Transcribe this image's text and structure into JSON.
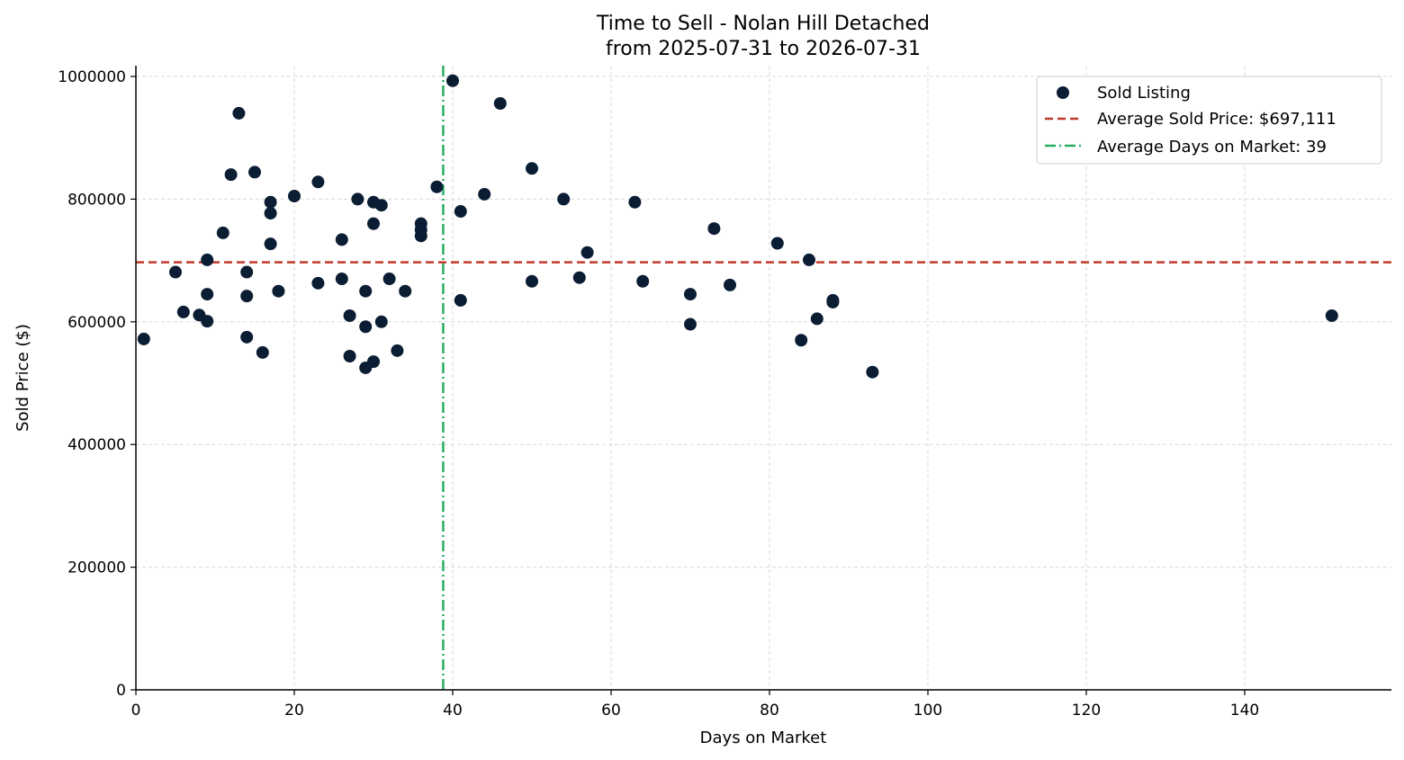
{
  "chart_data": {
    "type": "scatter",
    "title": "Time to Sell - Nolan Hill Detached",
    "subtitle": "from 2025-07-31 to 2026-07-31",
    "xlabel": "Days on Market",
    "ylabel": "Sold Price ($)",
    "xlim": [
      0,
      158
    ],
    "ylim": [
      0,
      1015000
    ],
    "x_ticks": [
      0,
      20,
      40,
      60,
      80,
      100,
      120,
      140
    ],
    "y_ticks": [
      0,
      200000,
      400000,
      600000,
      800000,
      1000000
    ],
    "grid": true,
    "legend_position": "top-right",
    "colors": {
      "points": "#0b1d33",
      "avg_price_line": "#c0392b",
      "avg_days_line": "#27ae60",
      "grid": "#d9d9d9"
    },
    "series": [
      {
        "name": "Sold Listing",
        "points": [
          [
            1,
            572000
          ],
          [
            5,
            681000
          ],
          [
            6,
            616000
          ],
          [
            8,
            611000
          ],
          [
            9,
            601000
          ],
          [
            9,
            645000
          ],
          [
            9,
            701000
          ],
          [
            11,
            745000
          ],
          [
            12,
            840000
          ],
          [
            13,
            940000
          ],
          [
            14,
            681000
          ],
          [
            14,
            642000
          ],
          [
            14,
            575000
          ],
          [
            15,
            844000
          ],
          [
            16,
            550000
          ],
          [
            17,
            795000
          ],
          [
            17,
            777000
          ],
          [
            17,
            727000
          ],
          [
            18,
            650000
          ],
          [
            20,
            805000
          ],
          [
            23,
            828000
          ],
          [
            23,
            663000
          ],
          [
            26,
            734000
          ],
          [
            26,
            670000
          ],
          [
            27,
            610000
          ],
          [
            27,
            544000
          ],
          [
            28,
            800000
          ],
          [
            29,
            650000
          ],
          [
            29,
            592000
          ],
          [
            29,
            525000
          ],
          [
            30,
            795000
          ],
          [
            30,
            760000
          ],
          [
            30,
            535000
          ],
          [
            31,
            790000
          ],
          [
            31,
            600000
          ],
          [
            32,
            670000
          ],
          [
            33,
            553000
          ],
          [
            34,
            650000
          ],
          [
            36,
            760000
          ],
          [
            36,
            750000
          ],
          [
            36,
            740000
          ],
          [
            38,
            820000
          ],
          [
            40,
            993000
          ],
          [
            41,
            780000
          ],
          [
            41,
            635000
          ],
          [
            44,
            808000
          ],
          [
            46,
            956000
          ],
          [
            50,
            850000
          ],
          [
            50,
            666000
          ],
          [
            54,
            800000
          ],
          [
            56,
            672000
          ],
          [
            57,
            713000
          ],
          [
            63,
            795000
          ],
          [
            64,
            666000
          ],
          [
            70,
            645000
          ],
          [
            70,
            596000
          ],
          [
            73,
            752000
          ],
          [
            75,
            660000
          ],
          [
            81,
            728000
          ],
          [
            84,
            570000
          ],
          [
            85,
            701000
          ],
          [
            86,
            605000
          ],
          [
            88,
            632000
          ],
          [
            88,
            635000
          ],
          [
            93,
            518000
          ],
          [
            151,
            610000
          ]
        ]
      }
    ],
    "reference_lines": [
      {
        "type": "horizontal",
        "value": 697111,
        "style": "dashed",
        "label": "Average Sold Price: $697,111"
      },
      {
        "type": "vertical",
        "value": 38.8,
        "style": "dashdot",
        "label": "Average Days on Market: 39"
      }
    ]
  }
}
